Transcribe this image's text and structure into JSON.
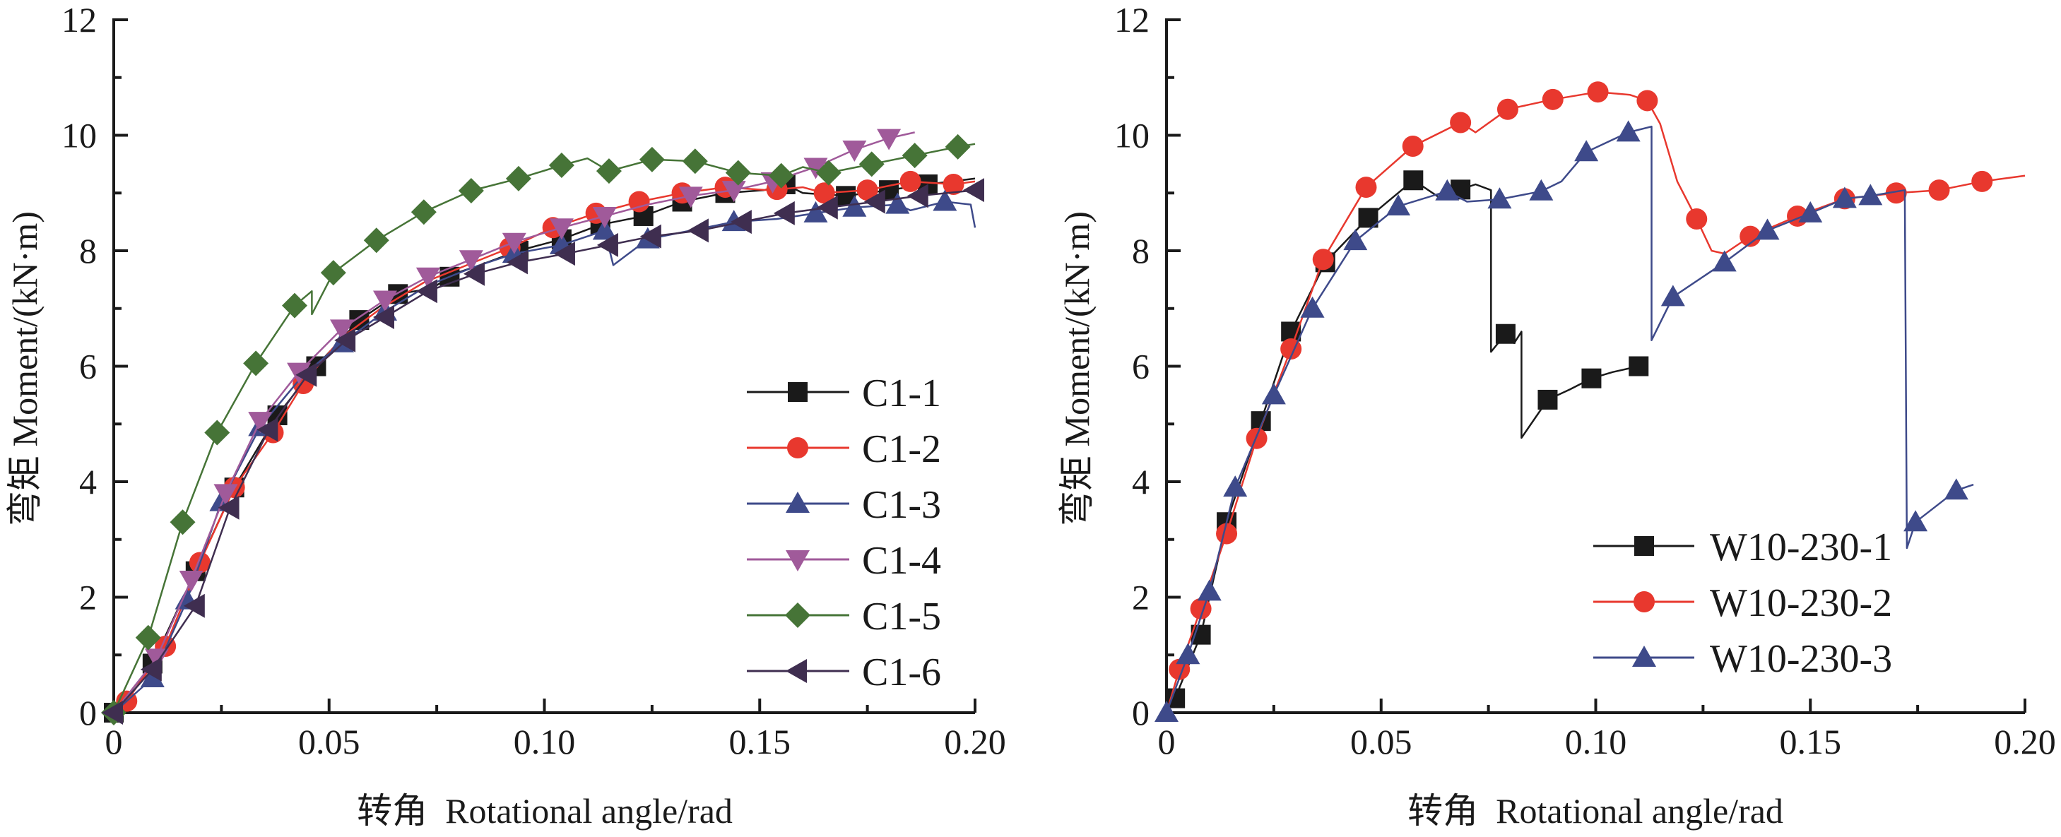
{
  "chart_data": [
    {
      "type": "line",
      "title": "",
      "xlabel": "转角  Rotational angle/rad",
      "ylabel": "弯矩  Moment/(kN·m)",
      "xlim": [
        0,
        0.2
      ],
      "ylim": [
        0,
        12
      ],
      "x_ticks": [
        0,
        0.05,
        0.1,
        0.15,
        0.2
      ],
      "x_tick_labels": [
        "0",
        "0.05",
        "0.10",
        "0.15",
        "0.20"
      ],
      "x_minor_step": 0.025,
      "y_ticks": [
        0,
        2,
        4,
        6,
        8,
        10,
        12
      ],
      "y_tick_labels": [
        "0",
        "2",
        "4",
        "6",
        "8",
        "10",
        "12"
      ],
      "y_minor_step": 1,
      "grid": false,
      "legend": "lower-right",
      "series": [
        {
          "name": "C1-1",
          "color": "#1a1a1a",
          "marker": "square",
          "x": [
            0,
            0.009,
            0.019,
            0.028,
            0.038,
            0.047,
            0.057,
            0.066,
            0.074,
            0.079,
            0.085,
            0.094,
            0.104,
            0.113,
            0.123,
            0.132,
            0.142,
            0.151,
            0.156,
            0.16,
            0.17,
            0.18,
            0.189,
            0.2
          ],
          "y": [
            0,
            0.85,
            2.45,
            3.9,
            5.15,
            6.0,
            6.8,
            7.25,
            7.35,
            7.6,
            7.75,
            8.0,
            8.2,
            8.45,
            8.6,
            8.85,
            9.0,
            9.05,
            9.15,
            9.0,
            8.95,
            9.05,
            9.15,
            9.25
          ],
          "marker_x": [
            0,
            0.009,
            0.019,
            0.028,
            0.038,
            0.047,
            0.057,
            0.066,
            0.078,
            0.094,
            0.104,
            0.113,
            0.123,
            0.132,
            0.142,
            0.156,
            0.17,
            0.18,
            0.189
          ]
        },
        {
          "name": "C1-2",
          "color": "#e8382e",
          "marker": "circle",
          "x": [
            0,
            0.003,
            0.012,
            0.02,
            0.028,
            0.037,
            0.044,
            0.053,
            0.062,
            0.072,
            0.082,
            0.092,
            0.102,
            0.112,
            0.122,
            0.132,
            0.142,
            0.152,
            0.16,
            0.165,
            0.175,
            0.185,
            0.195,
            0.2
          ],
          "y": [
            0,
            0.2,
            1.15,
            2.6,
            3.9,
            4.85,
            5.7,
            6.5,
            7.0,
            7.45,
            7.75,
            8.05,
            8.4,
            8.65,
            8.85,
            9.0,
            9.1,
            9.05,
            9.1,
            9.0,
            9.05,
            9.2,
            9.15,
            9.2
          ],
          "marker_x": [
            0.003,
            0.012,
            0.02,
            0.028,
            0.037,
            0.044,
            0.092,
            0.102,
            0.112,
            0.122,
            0.132,
            0.142,
            0.154,
            0.165,
            0.175,
            0.185,
            0.195
          ]
        },
        {
          "name": "C1-3",
          "color": "#3e4a8a",
          "marker": "triangle-up",
          "x": [
            0,
            0.009,
            0.017,
            0.025,
            0.034,
            0.044,
            0.053,
            0.063,
            0.073,
            0.083,
            0.093,
            0.104,
            0.114,
            0.116,
            0.124,
            0.134,
            0.144,
            0.154,
            0.163,
            0.172,
            0.182,
            0.185,
            0.193,
            0.199,
            0.2
          ],
          "y": [
            0,
            0.6,
            1.95,
            3.65,
            4.95,
            5.85,
            6.4,
            6.95,
            7.4,
            7.7,
            7.95,
            8.1,
            8.35,
            7.75,
            8.2,
            8.35,
            8.5,
            8.55,
            8.65,
            8.75,
            8.8,
            8.7,
            8.85,
            8.8,
            8.4
          ],
          "marker_x": [
            0.009,
            0.017,
            0.025,
            0.034,
            0.053,
            0.063,
            0.093,
            0.104,
            0.114,
            0.124,
            0.144,
            0.163,
            0.172,
            0.182,
            0.193
          ]
        },
        {
          "name": "C1-4",
          "color": "#a05a9a",
          "marker": "triangle-down",
          "x": [
            0,
            0.01,
            0.018,
            0.026,
            0.034,
            0.043,
            0.053,
            0.063,
            0.073,
            0.083,
            0.093,
            0.104,
            0.114,
            0.124,
            0.134,
            0.144,
            0.153,
            0.163,
            0.172,
            0.18,
            0.186
          ],
          "y": [
            0,
            0.95,
            2.3,
            3.8,
            5.05,
            5.9,
            6.65,
            7.15,
            7.55,
            7.85,
            8.15,
            8.4,
            8.6,
            8.8,
            8.95,
            9.05,
            9.2,
            9.45,
            9.75,
            9.95,
            10.05
          ],
          "marker_x": [
            0.01,
            0.018,
            0.026,
            0.034,
            0.043,
            0.053,
            0.063,
            0.073,
            0.083,
            0.093,
            0.104,
            0.114,
            0.134,
            0.144,
            0.153,
            0.163,
            0.172,
            0.18
          ]
        },
        {
          "name": "C1-5",
          "color": "#467437",
          "marker": "diamond",
          "x": [
            0,
            0.008,
            0.016,
            0.024,
            0.033,
            0.042,
            0.046,
            0.046,
            0.051,
            0.061,
            0.072,
            0.083,
            0.094,
            0.104,
            0.11,
            0.115,
            0.125,
            0.135,
            0.145,
            0.155,
            0.16,
            0.166,
            0.176,
            0.186,
            0.196,
            0.2
          ],
          "y": [
            0,
            1.3,
            3.3,
            4.85,
            6.05,
            7.05,
            7.3,
            6.9,
            7.62,
            8.18,
            8.67,
            9.04,
            9.25,
            9.48,
            9.6,
            9.38,
            9.58,
            9.55,
            9.35,
            9.3,
            9.45,
            9.35,
            9.5,
            9.65,
            9.8,
            9.85
          ],
          "marker_x": [
            0,
            0.008,
            0.016,
            0.024,
            0.033,
            0.042,
            0.051,
            0.061,
            0.072,
            0.083,
            0.094,
            0.104,
            0.115,
            0.125,
            0.135,
            0.145,
            0.155,
            0.166,
            0.176,
            0.186,
            0.196
          ]
        },
        {
          "name": "C1-6",
          "color": "#3f2e50",
          "marker": "triangle-left",
          "x": [
            0,
            0.009,
            0.019,
            0.027,
            0.036,
            0.045,
            0.054,
            0.063,
            0.073,
            0.084,
            0.094,
            0.105,
            0.115,
            0.125,
            0.136,
            0.146,
            0.156,
            0.166,
            0.177,
            0.187,
            0.2
          ],
          "y": [
            0,
            0.75,
            1.85,
            3.55,
            4.9,
            5.85,
            6.45,
            6.85,
            7.3,
            7.6,
            7.8,
            7.95,
            8.1,
            8.25,
            8.35,
            8.5,
            8.65,
            8.75,
            8.85,
            8.95,
            9.05
          ],
          "marker_x": [
            0,
            0.009,
            0.019,
            0.027,
            0.036,
            0.045,
            0.054,
            0.063,
            0.073,
            0.084,
            0.094,
            0.105,
            0.115,
            0.125,
            0.136,
            0.146,
            0.156,
            0.166,
            0.177,
            0.187,
            0.2
          ]
        }
      ]
    },
    {
      "type": "line",
      "title": "",
      "xlabel": "转角  Rotational angle/rad",
      "ylabel": "弯矩  Moment/(kN·m)",
      "xlim": [
        0,
        0.2
      ],
      "ylim": [
        0,
        12
      ],
      "x_ticks": [
        0,
        0.05,
        0.1,
        0.15,
        0.2
      ],
      "x_tick_labels": [
        "0",
        "0.05",
        "0.10",
        "0.15",
        "0.20"
      ],
      "x_minor_step": 0.025,
      "y_ticks": [
        0,
        2,
        4,
        6,
        8,
        10,
        12
      ],
      "y_tick_labels": [
        "0",
        "2",
        "4",
        "6",
        "8",
        "10",
        "12"
      ],
      "y_minor_step": 1,
      "grid": false,
      "legend": "lower-right",
      "series": [
        {
          "name": "W10-230-1",
          "color": "#1a1a1a",
          "marker": "square",
          "x": [
            0,
            0.002,
            0.008,
            0.014,
            0.022,
            0.029,
            0.037,
            0.047,
            0.0575,
            0.06,
            0.064,
            0.0685,
            0.072,
            0.0756,
            0.0756,
            0.079,
            0.081,
            0.0827,
            0.0827,
            0.0888,
            0.094,
            0.099,
            0.104,
            0.11
          ],
          "y": [
            0,
            0.25,
            1.35,
            3.3,
            5.05,
            6.6,
            7.8,
            8.57,
            9.22,
            9.1,
            8.9,
            9.06,
            9.15,
            9.05,
            6.25,
            6.56,
            6.4,
            6.6,
            4.76,
            5.42,
            5.6,
            5.79,
            5.9,
            6.0
          ],
          "marker_x": [
            0.002,
            0.008,
            0.014,
            0.022,
            0.029,
            0.037,
            0.047,
            0.0575,
            0.0685,
            0.079,
            0.0888,
            0.099,
            0.11
          ]
        },
        {
          "name": "W10-230-2",
          "color": "#e8382e",
          "marker": "circle",
          "x": [
            0,
            0.003,
            0.008,
            0.014,
            0.021,
            0.029,
            0.0365,
            0.0465,
            0.0574,
            0.0685,
            0.072,
            0.0795,
            0.09,
            0.1005,
            0.108,
            0.112,
            0.115,
            0.119,
            0.1235,
            0.127,
            0.13,
            0.136,
            0.147,
            0.158,
            0.17,
            0.18,
            0.19,
            0.2
          ],
          "y": [
            0,
            0.75,
            1.8,
            3.1,
            4.75,
            6.3,
            7.85,
            9.1,
            9.81,
            10.22,
            10.05,
            10.45,
            10.62,
            10.75,
            10.7,
            10.6,
            10.2,
            9.2,
            8.55,
            8.0,
            7.95,
            8.25,
            8.6,
            8.9,
            9.0,
            9.05,
            9.2,
            9.3
          ],
          "marker_x": [
            0.003,
            0.008,
            0.014,
            0.021,
            0.029,
            0.0365,
            0.0465,
            0.0574,
            0.0685,
            0.0795,
            0.09,
            0.1005,
            0.112,
            0.1235,
            0.136,
            0.147,
            0.158,
            0.17,
            0.18,
            0.19
          ]
        },
        {
          "name": "W10-230-3",
          "color": "#3e4a8a",
          "marker": "triangle-up",
          "x": [
            0,
            0.005,
            0.01,
            0.016,
            0.025,
            0.034,
            0.044,
            0.054,
            0.0654,
            0.07,
            0.0776,
            0.0873,
            0.092,
            0.0978,
            0.1076,
            0.113,
            0.113,
            0.118,
            0.13,
            0.14,
            0.15,
            0.158,
            0.164,
            0.172,
            0.1725,
            0.1745,
            0.184,
            0.188
          ],
          "y": [
            0,
            1.0,
            2.1,
            3.9,
            5.5,
            7.0,
            8.17,
            8.77,
            9.03,
            8.85,
            8.89,
            9.03,
            9.2,
            9.71,
            10.05,
            10.15,
            6.45,
            7.2,
            7.8,
            8.35,
            8.65,
            8.9,
            8.95,
            9.05,
            2.85,
            3.3,
            3.85,
            3.95
          ],
          "marker_x": [
            0,
            0.005,
            0.01,
            0.016,
            0.025,
            0.034,
            0.044,
            0.054,
            0.0654,
            0.0776,
            0.0873,
            0.0978,
            0.1076,
            0.118,
            0.13,
            0.14,
            0.15,
            0.158,
            0.164,
            0.1745,
            0.184
          ]
        }
      ]
    }
  ]
}
